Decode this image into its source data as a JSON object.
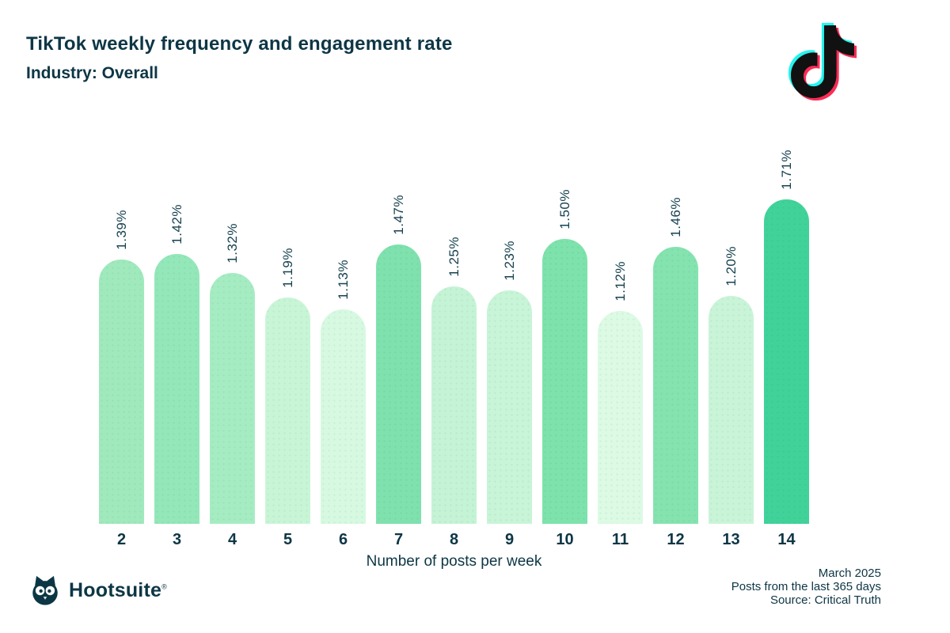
{
  "header": {
    "title": "TikTok weekly frequency and engagement rate",
    "subtitle": "Industry: Overall"
  },
  "chart_data": {
    "type": "bar",
    "title": "TikTok weekly frequency and engagement rate",
    "subtitle": "Industry: Overall",
    "categories": [
      "2",
      "3",
      "4",
      "5",
      "6",
      "7",
      "8",
      "9",
      "10",
      "11",
      "12",
      "13",
      "14"
    ],
    "values": [
      1.39,
      1.42,
      1.32,
      1.19,
      1.13,
      1.47,
      1.25,
      1.23,
      1.5,
      1.12,
      1.46,
      1.2,
      1.71
    ],
    "labels": [
      "1.39%",
      "1.42%",
      "1.32%",
      "1.19%",
      "1.13%",
      "1.47%",
      "1.25%",
      "1.23%",
      "1.50%",
      "1.12%",
      "1.46%",
      "1.20%",
      "1.71%"
    ],
    "bar_colors": [
      "#9fe9bd",
      "#93e7b8",
      "#a6ecc3",
      "#c9f5d7",
      "#d7f9e1",
      "#7fe1ad",
      "#c5f3d5",
      "#c8f4d7",
      "#7de2ab",
      "#dcfae4",
      "#85e3b0",
      "#c9f4d8",
      "#41d29a"
    ],
    "xlabel": "Number of posts per week",
    "ylabel": "",
    "ylim": [
      0,
      1.8
    ],
    "grid": false,
    "legend": "none",
    "value_suffix": "%"
  },
  "icons": {
    "tiktok_logo": "tiktok-logo",
    "owl": "hootsuite-owl"
  },
  "colors": {
    "ink": "#0d3645",
    "bar_max": "#41d29a",
    "bar_min": "#dcfae4",
    "tiktok_black": "#111111",
    "tiktok_cyan": "#25f4ee",
    "tiktok_pink": "#fe2c55"
  },
  "footer": {
    "brand": "Hootsuite",
    "registered": "®",
    "date": "March 2025",
    "range": "Posts from the last 365 days",
    "source": "Source: Critical Truth"
  }
}
